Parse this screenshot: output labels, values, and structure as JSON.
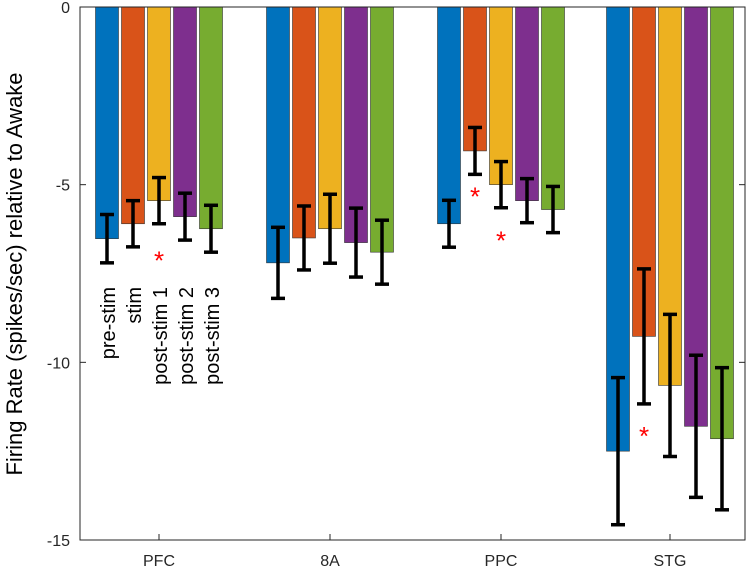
{
  "chart_data": {
    "type": "bar",
    "title": "",
    "xlabel": "",
    "ylabel": "Firing Rate (spikes/sec) relative to Awake",
    "ylim": [
      -15,
      0
    ],
    "yticks": [
      0,
      -5,
      -10,
      -15
    ],
    "ytick_labels": [
      "0",
      "-5",
      "-10",
      "-15"
    ],
    "grid": false,
    "categories": [
      "PFC",
      "8A",
      "PPC",
      "STG"
    ],
    "legend_placement": "inside-left (vertical text over PFC bars)",
    "series": [
      {
        "name": "pre-stim",
        "color": "#0072BD",
        "values": [
          -6.52,
          -7.2,
          -6.1,
          -12.5
        ],
        "errors": [
          0.68,
          1.0,
          0.66,
          2.07
        ]
      },
      {
        "name": "stim",
        "color": "#D95319",
        "values": [
          -6.1,
          -6.5,
          -4.05,
          -9.27
        ],
        "errors": [
          0.65,
          0.9,
          0.66,
          1.9
        ]
      },
      {
        "name": "post-stim 1",
        "color": "#EDB120",
        "values": [
          -5.45,
          -6.24,
          -5.0,
          -10.65
        ],
        "errors": [
          0.65,
          0.97,
          0.65,
          2.0
        ]
      },
      {
        "name": "post-stim 2",
        "color": "#7E2F8E",
        "values": [
          -5.9,
          -6.63,
          -5.45,
          -11.8
        ],
        "errors": [
          0.66,
          0.97,
          0.62,
          2.0
        ]
      },
      {
        "name": "post-stim 3",
        "color": "#77AC30",
        "values": [
          -6.24,
          -6.9,
          -5.7,
          -12.15
        ],
        "errors": [
          0.66,
          0.9,
          0.65,
          2.0
        ]
      }
    ],
    "significance_markers": [
      {
        "category": "PFC",
        "series": "post-stim 1",
        "symbol": "*",
        "value": -7.1
      },
      {
        "category": "PPC",
        "series": "stim",
        "symbol": "*",
        "value": -5.3
      },
      {
        "category": "PPC",
        "series": "post-stim 1",
        "symbol": "*",
        "value": -6.55
      },
      {
        "category": "STG",
        "series": "stim",
        "symbol": "*",
        "value": -12.05
      }
    ],
    "marker_color": "#FF0000"
  }
}
